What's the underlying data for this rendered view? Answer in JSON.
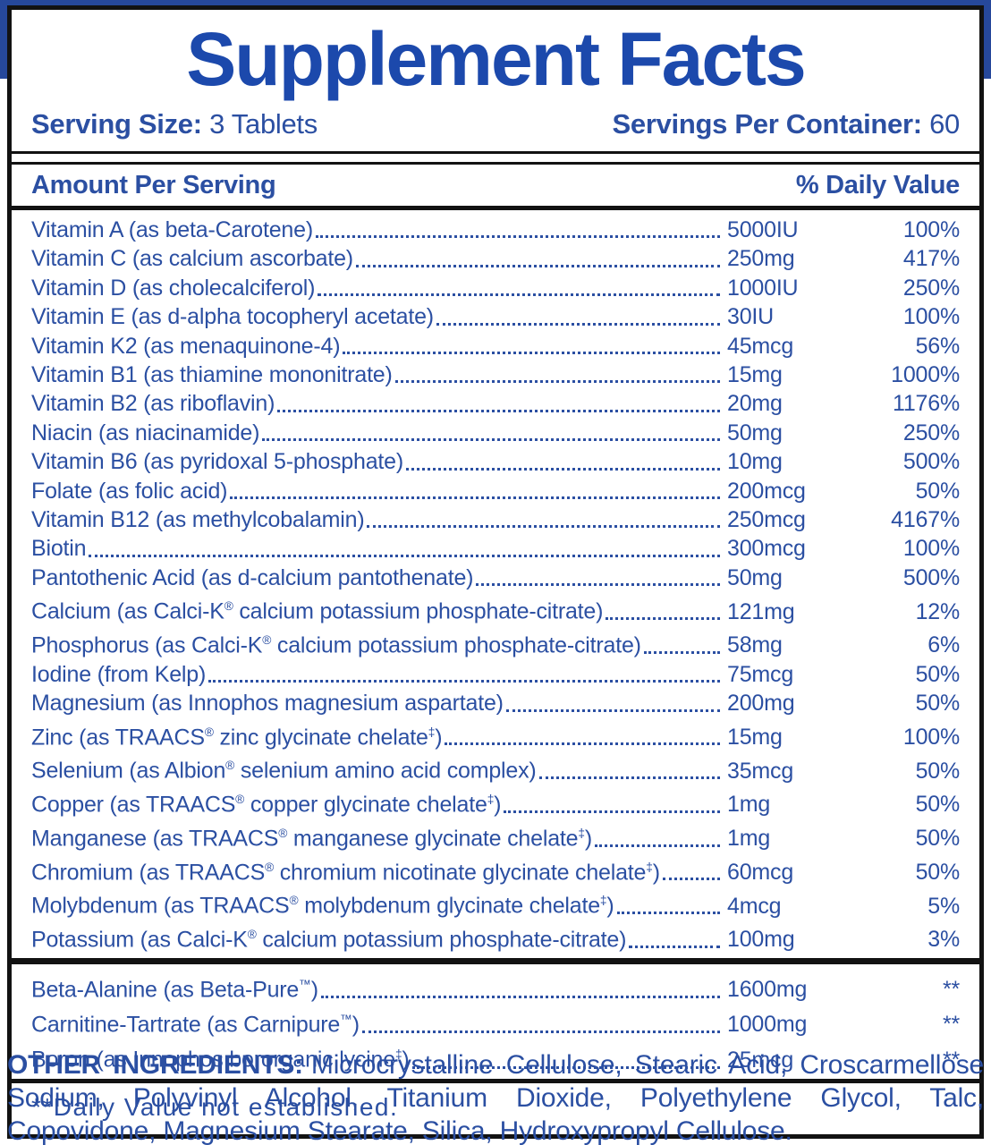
{
  "colors": {
    "band_blue": "#26489b",
    "title_blue": "#1c49ac",
    "text_blue": "#2b4fa2",
    "border_black": "#121212"
  },
  "title": "Supplement Facts",
  "serving": {
    "size_label": "Serving Size:",
    "size_value": "3 Tablets",
    "per_container_label": "Servings Per Container:",
    "per_container_value": "60"
  },
  "table": {
    "header_left": "Amount Per Serving",
    "header_right": "% Daily Value",
    "rows": [
      {
        "name": "Vitamin A (as beta-Carotene)",
        "amount": "5000IU",
        "dv": "100%"
      },
      {
        "name": "Vitamin C (as calcium ascorbate)",
        "amount": "250mg",
        "dv": "417%"
      },
      {
        "name": "Vitamin D (as cholecalciferol)",
        "amount": "1000IU",
        "dv": "250%"
      },
      {
        "name": "Vitamin E (as d-alpha tocopheryl acetate)",
        "amount": "30IU",
        "dv": "100%"
      },
      {
        "name": "Vitamin K2 (as menaquinone-4)",
        "amount": "45mcg",
        "dv": "56%"
      },
      {
        "name": "Vitamin B1 (as thiamine mononitrate)",
        "amount": "15mg",
        "dv": "1000%"
      },
      {
        "name": "Vitamin B2 (as riboflavin)",
        "amount": "20mg",
        "dv": "1176%"
      },
      {
        "name": "Niacin (as niacinamide)",
        "amount": "50mg",
        "dv": "250%"
      },
      {
        "name": "Vitamin B6 (as pyridoxal 5-phosphate)",
        "amount": "10mg",
        "dv": "500%"
      },
      {
        "name": "Folate (as folic acid)",
        "amount": "200mcg",
        "dv": "50%"
      },
      {
        "name": "Vitamin B12 (as methylcobalamin)",
        "amount": "250mcg",
        "dv": "4167%"
      },
      {
        "name": "Biotin",
        "amount": "300mcg",
        "dv": "100%"
      },
      {
        "name": "Pantothenic Acid (as d-calcium pantothenate)",
        "amount": "50mg",
        "dv": "500%"
      },
      {
        "name": "Calcium (as Calci-K® calcium potassium phosphate-citrate)",
        "amount": "121mg",
        "dv": "12%"
      },
      {
        "name": "Phosphorus (as Calci-K® calcium potassium phosphate-citrate)",
        "amount": "58mg",
        "dv": "6%"
      },
      {
        "name": "Iodine (from Kelp)",
        "amount": "75mcg",
        "dv": "50%"
      },
      {
        "name": "Magnesium (as Innophos magnesium aspartate)",
        "amount": "200mg",
        "dv": "50%"
      },
      {
        "name": "Zinc (as TRAACS® zinc glycinate chelate‡)",
        "amount": "15mg",
        "dv": "100%"
      },
      {
        "name": "Selenium (as Albion® selenium amino acid complex)",
        "amount": "35mcg",
        "dv": "50%"
      },
      {
        "name": "Copper (as TRAACS® copper glycinate chelate‡)",
        "amount": "1mg",
        "dv": "50%"
      },
      {
        "name": "Manganese (as TRAACS® manganese glycinate chelate‡)",
        "amount": "1mg",
        "dv": "50%"
      },
      {
        "name": "Chromium (as TRAACS® chromium nicotinate glycinate chelate‡)",
        "amount": "60mcg",
        "dv": "50%"
      },
      {
        "name": "Molybdenum (as TRAACS® molybdenum glycinate chelate‡)",
        "amount": "4mcg",
        "dv": "5%"
      },
      {
        "name": "Potassium (as Calci-K® calcium potassium phosphate-citrate)",
        "amount": "100mg",
        "dv": "3%"
      }
    ],
    "extra_rows": [
      {
        "name": "Beta-Alanine (as Beta-Pure™)",
        "amount": "1600mg",
        "dv": "**"
      },
      {
        "name": "Carnitine-Tartrate (as Carnipure™)",
        "amount": "1000mg",
        "dv": "**"
      },
      {
        "name": "Boron (as Innophos bororganic lycine‡)",
        "amount": "25mcg",
        "dv": "**"
      }
    ],
    "footnote": "**Daily Value not established."
  },
  "other_ingredients": {
    "label": "OTHER INGREDIENTS:",
    "text": "Microcrystalline Cellulose, Stearic Acid, Croscarmellose Sodium, Polyvinyl Alcohol, Titanium Dioxide, Polyethylene Glycol, Talc, Copovidone, Magnesium Stearate, Silica, Hydroxypropyl Cellulose."
  }
}
